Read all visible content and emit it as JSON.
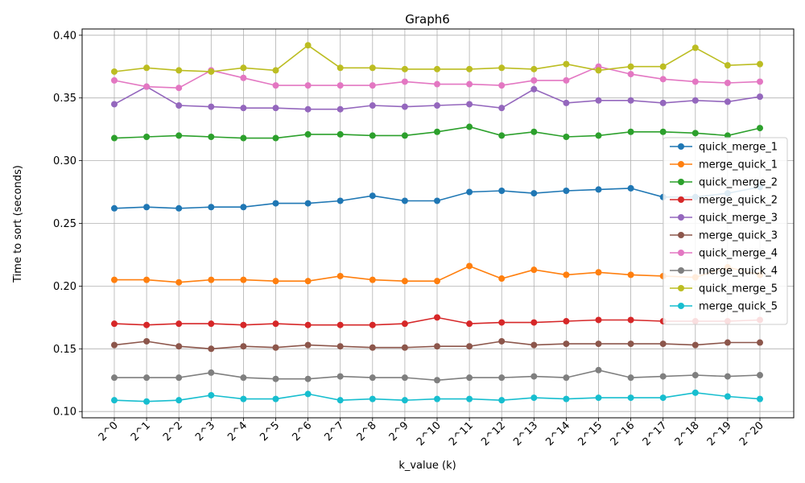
{
  "chart_data": {
    "type": "line",
    "title": "Graph6",
    "xlabel": "k_value (k)",
    "ylabel": "Time to sort (seconds)",
    "categories": [
      "2^0",
      "2^1",
      "2^2",
      "2^3",
      "2^4",
      "2^5",
      "2^6",
      "2^7",
      "2^8",
      "2^9",
      "2^10",
      "2^11",
      "2^12",
      "2^13",
      "2^14",
      "2^15",
      "2^16",
      "2^17",
      "2^18",
      "2^19",
      "2^20"
    ],
    "ylim": [
      0.095,
      0.405
    ],
    "yticks": [
      "0.10",
      "0.15",
      "0.20",
      "0.25",
      "0.30",
      "0.35",
      "0.40"
    ],
    "ytick_values": [
      0.1,
      0.15,
      0.2,
      0.25,
      0.3,
      0.35,
      0.4
    ],
    "grid": true,
    "legend_position": "center-right",
    "series": [
      {
        "name": "quick_merge_1",
        "color": "#1f77b4",
        "values": [
          0.262,
          0.263,
          0.262,
          0.263,
          0.263,
          0.266,
          0.266,
          0.268,
          0.272,
          0.268,
          0.268,
          0.275,
          0.276,
          0.274,
          0.276,
          0.277,
          0.278,
          0.271,
          0.271,
          0.274,
          0.279
        ]
      },
      {
        "name": "merge_quick_1",
        "color": "#ff7f0e",
        "values": [
          0.205,
          0.205,
          0.203,
          0.205,
          0.205,
          0.204,
          0.204,
          0.208,
          0.205,
          0.204,
          0.204,
          0.216,
          0.206,
          0.213,
          0.209,
          0.211,
          0.209,
          0.208,
          0.207,
          0.215,
          0.209
        ]
      },
      {
        "name": "quick_merge_2",
        "color": "#2ca02c",
        "values": [
          0.318,
          0.319,
          0.32,
          0.319,
          0.318,
          0.318,
          0.321,
          0.321,
          0.32,
          0.32,
          0.323,
          0.327,
          0.32,
          0.323,
          0.319,
          0.32,
          0.323,
          0.323,
          0.322,
          0.32,
          0.326
        ]
      },
      {
        "name": "merge_quick_2",
        "color": "#d62728",
        "values": [
          0.17,
          0.169,
          0.17,
          0.17,
          0.169,
          0.17,
          0.169,
          0.169,
          0.169,
          0.17,
          0.175,
          0.17,
          0.171,
          0.171,
          0.172,
          0.173,
          0.173,
          0.172,
          0.172,
          0.172,
          0.173
        ]
      },
      {
        "name": "quick_merge_3",
        "color": "#9467bd",
        "values": [
          0.345,
          0.359,
          0.344,
          0.343,
          0.342,
          0.342,
          0.341,
          0.341,
          0.344,
          0.343,
          0.344,
          0.345,
          0.342,
          0.357,
          0.346,
          0.348,
          0.348,
          0.346,
          0.348,
          0.347,
          0.351
        ]
      },
      {
        "name": "merge_quick_3",
        "color": "#8c564b",
        "values": [
          0.153,
          0.156,
          0.152,
          0.15,
          0.152,
          0.151,
          0.153,
          0.152,
          0.151,
          0.151,
          0.152,
          0.152,
          0.156,
          0.153,
          0.154,
          0.154,
          0.154,
          0.154,
          0.153,
          0.155,
          0.155
        ]
      },
      {
        "name": "quick_merge_4",
        "color": "#e377c2",
        "values": [
          0.364,
          0.359,
          0.358,
          0.372,
          0.366,
          0.36,
          0.36,
          0.36,
          0.36,
          0.363,
          0.361,
          0.361,
          0.36,
          0.364,
          0.364,
          0.375,
          0.369,
          0.365,
          0.363,
          0.362,
          0.363
        ]
      },
      {
        "name": "merge_quick_4",
        "color": "#7f7f7f",
        "values": [
          0.127,
          0.127,
          0.127,
          0.131,
          0.127,
          0.126,
          0.126,
          0.128,
          0.127,
          0.127,
          0.125,
          0.127,
          0.127,
          0.128,
          0.127,
          0.133,
          0.127,
          0.128,
          0.129,
          0.128,
          0.129
        ]
      },
      {
        "name": "quick_merge_5",
        "color": "#bcbd22",
        "values": [
          0.371,
          0.374,
          0.372,
          0.371,
          0.374,
          0.372,
          0.392,
          0.374,
          0.374,
          0.373,
          0.373,
          0.373,
          0.374,
          0.373,
          0.377,
          0.372,
          0.375,
          0.375,
          0.39,
          0.376,
          0.377
        ]
      },
      {
        "name": "merge_quick_5",
        "color": "#17becf",
        "values": [
          0.109,
          0.108,
          0.109,
          0.113,
          0.11,
          0.11,
          0.114,
          0.109,
          0.11,
          0.109,
          0.11,
          0.11,
          0.109,
          0.111,
          0.11,
          0.111,
          0.111,
          0.111,
          0.115,
          0.112,
          0.11
        ]
      }
    ]
  }
}
